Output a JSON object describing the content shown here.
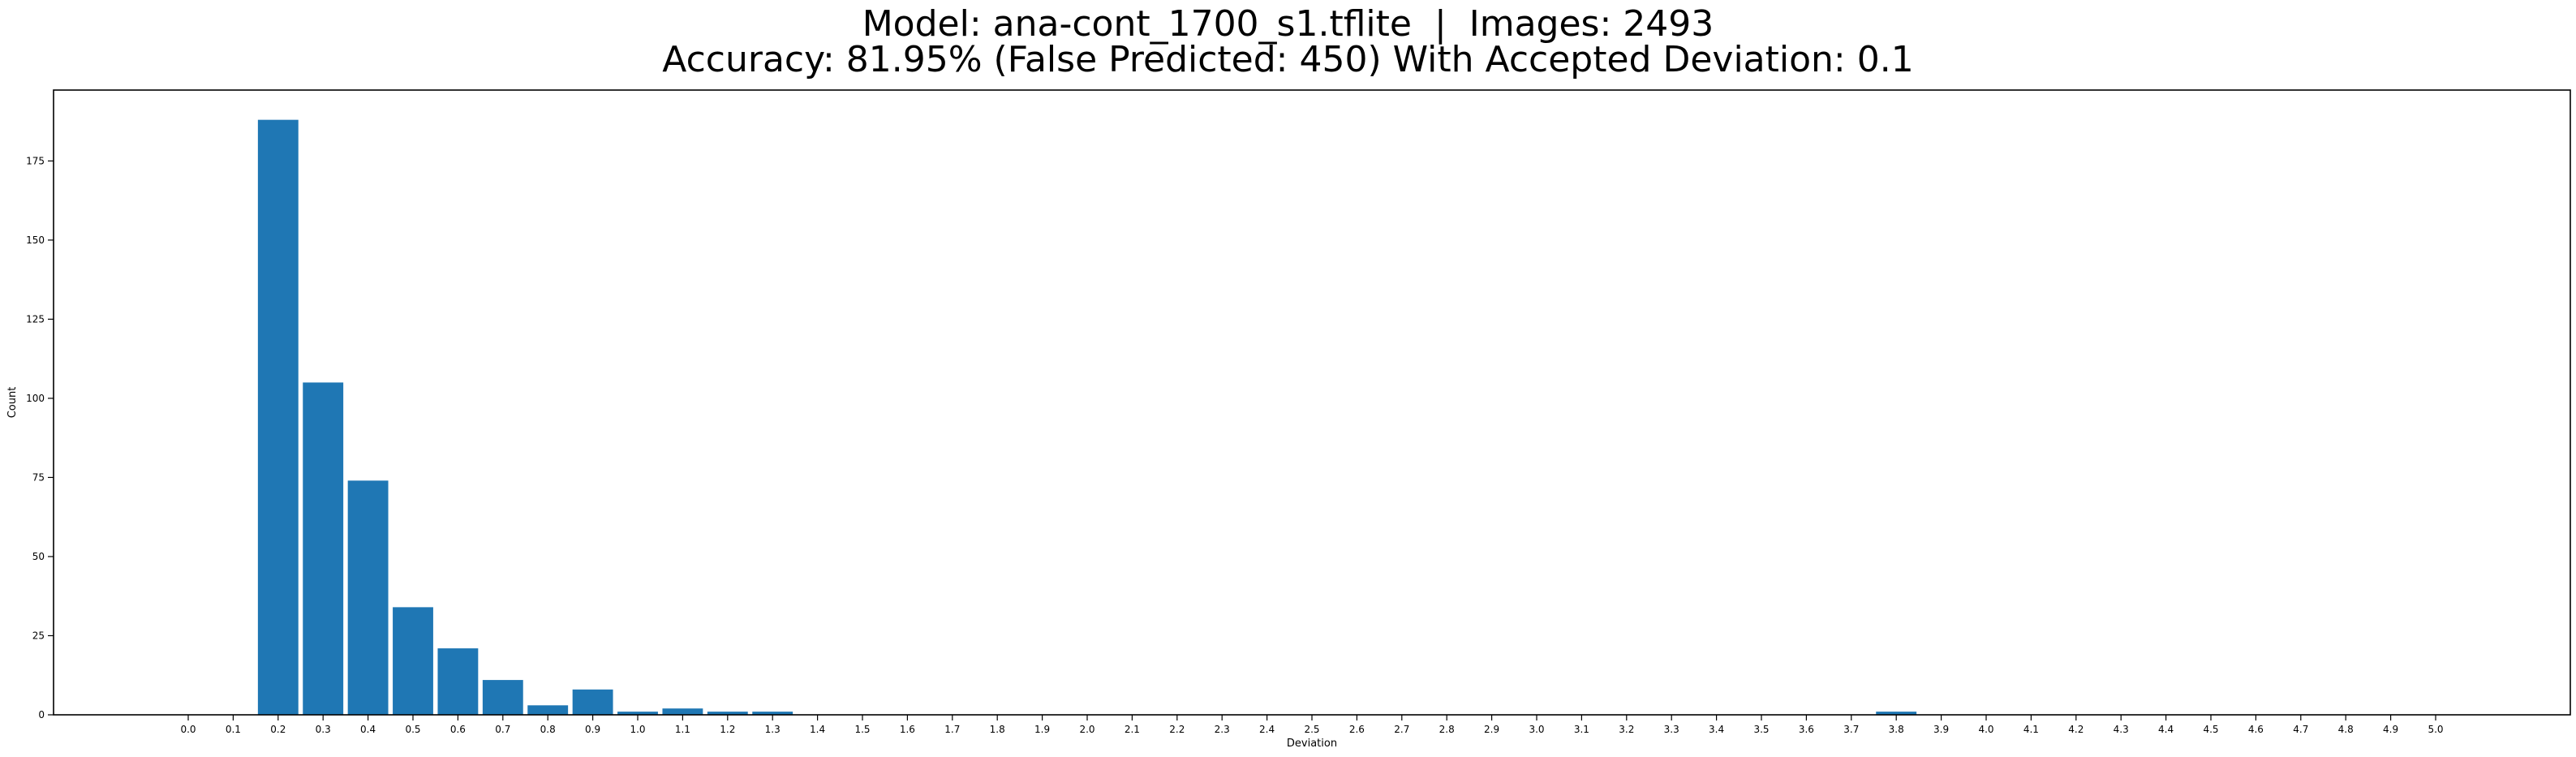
{
  "chart_data": {
    "type": "bar",
    "title_lines": [
      "Model: ana-cont_1700_s1.tflite  |  Images: 2493",
      "Accuracy: 81.95% (False Predicted: 450) With Accepted Deviation: 0.1"
    ],
    "xlabel": "Deviation",
    "ylabel": "Count",
    "categories": [
      "0.0",
      "0.1",
      "0.2",
      "0.3",
      "0.4",
      "0.5",
      "0.6",
      "0.7",
      "0.8",
      "0.9",
      "1.0",
      "1.1",
      "1.2",
      "1.3",
      "1.4",
      "1.5",
      "1.6",
      "1.7",
      "1.8",
      "1.9",
      "2.0",
      "2.1",
      "2.2",
      "2.3",
      "2.4",
      "2.5",
      "2.6",
      "2.7",
      "2.8",
      "2.9",
      "3.0",
      "3.1",
      "3.2",
      "3.3",
      "3.4",
      "3.5",
      "3.6",
      "3.7",
      "3.8",
      "3.9",
      "4.0",
      "4.1",
      "4.2",
      "4.3",
      "4.4",
      "4.5",
      "4.6",
      "4.7",
      "4.8",
      "4.9",
      "5.0"
    ],
    "values": [
      0,
      0,
      188,
      105,
      74,
      34,
      21,
      11,
      3,
      8,
      1,
      2,
      1,
      1,
      0,
      0,
      0,
      0,
      0,
      0,
      0,
      0,
      0,
      0,
      0,
      0,
      0,
      0,
      0,
      0,
      0,
      0,
      0,
      0,
      0,
      0,
      0,
      0,
      1,
      0,
      0,
      0,
      0,
      0,
      0,
      0,
      0,
      0,
      0,
      0,
      0
    ],
    "yticks": [
      0,
      25,
      50,
      75,
      100,
      125,
      150,
      175
    ],
    "ylim": [
      0,
      197.4
    ],
    "bar_color": "#1f77b4",
    "grid": false,
    "legend": false
  }
}
